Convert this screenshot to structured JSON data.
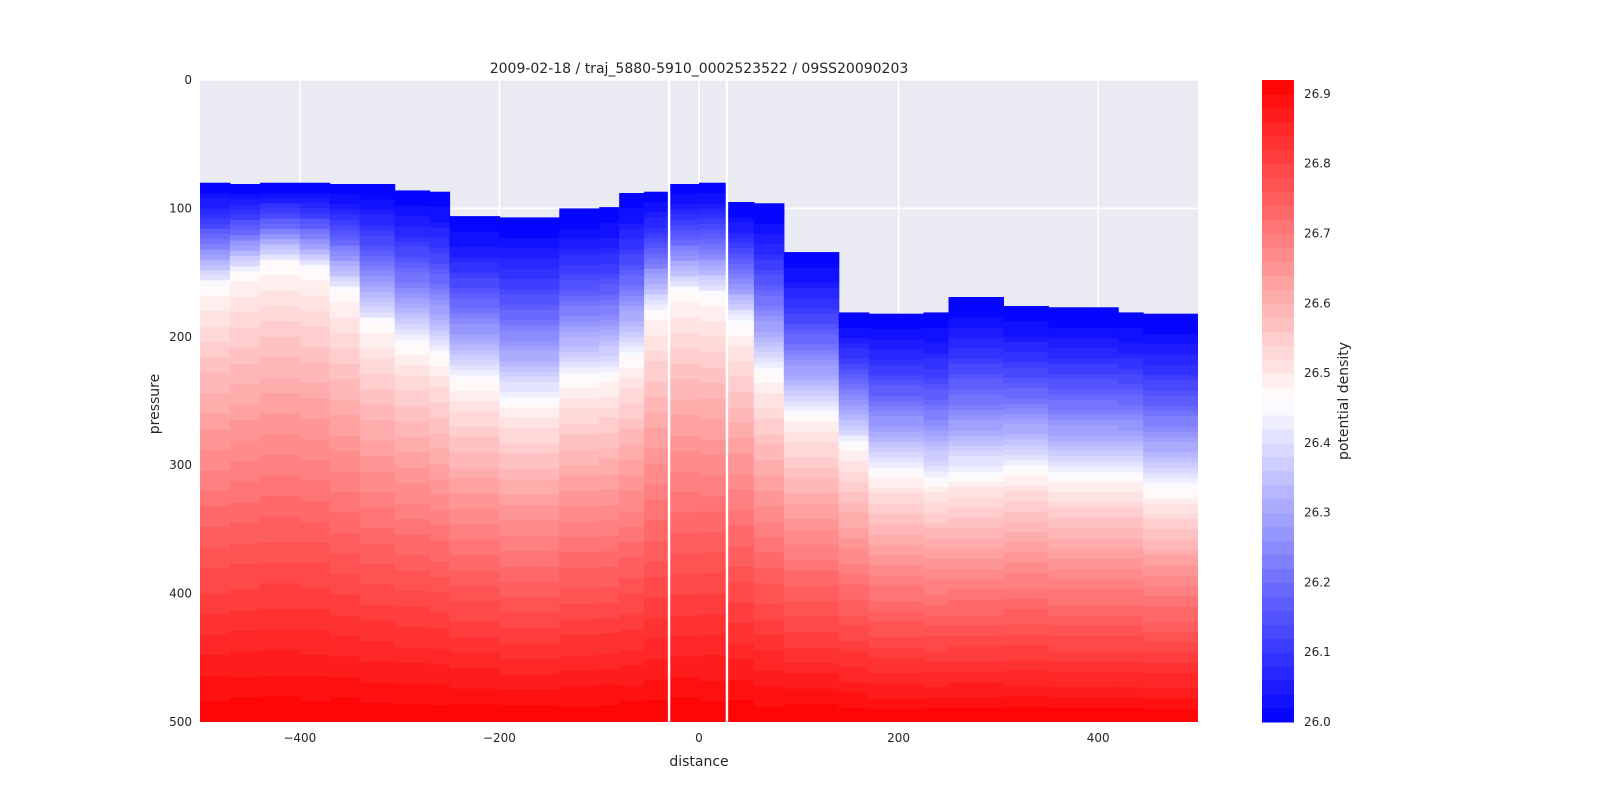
{
  "chart_data": {
    "type": "heatmap",
    "title": "2009-02-18 / traj_5880-5910_0002523522 / 09SS20090203",
    "xlabel": "distance",
    "ylabel": "pressure",
    "xlim": [
      -500,
      500
    ],
    "ylim": [
      500,
      0
    ],
    "y_inverted": true,
    "x_ticks": [
      -400,
      -200,
      0,
      200,
      400
    ],
    "x_tick_labels": [
      "−400",
      "−200",
      "0",
      "200",
      "400"
    ],
    "y_ticks": [
      0,
      100,
      200,
      300,
      400,
      500
    ],
    "grid": true,
    "colorbar": {
      "label": "potential density",
      "range": [
        26.0,
        26.92
      ],
      "ticks": [
        26.0,
        26.1,
        26.2,
        26.3,
        26.4,
        26.5,
        26.6,
        26.7,
        26.8,
        26.9
      ],
      "low_color": "#0000ff",
      "mid_color": "#ffffff",
      "high_color": "#ff0000",
      "levels": 46
    },
    "section_gaps": [
      -30,
      28
    ],
    "columns": [
      {
        "x0": -500,
        "x1": -470,
        "top": 80,
        "iso": 160
      },
      {
        "x0": -470,
        "x1": -440,
        "top": 81,
        "iso": 150
      },
      {
        "x0": -440,
        "x1": -400,
        "top": 80,
        "iso": 142
      },
      {
        "x0": -400,
        "x1": -370,
        "top": 80,
        "iso": 148
      },
      {
        "x0": -370,
        "x1": -340,
        "top": 81,
        "iso": 165
      },
      {
        "x0": -340,
        "x1": -305,
        "top": 81,
        "iso": 190
      },
      {
        "x0": -305,
        "x1": -270,
        "top": 86,
        "iso": 205
      },
      {
        "x0": -270,
        "x1": -250,
        "top": 87,
        "iso": 215
      },
      {
        "x0": -250,
        "x1": -200,
        "top": 106,
        "iso": 235
      },
      {
        "x0": -200,
        "x1": -140,
        "top": 107,
        "iso": 250
      },
      {
        "x0": -140,
        "x1": -100,
        "top": 100,
        "iso": 232
      },
      {
        "x0": -100,
        "x1": -80,
        "top": 99,
        "iso": 230
      },
      {
        "x0": -80,
        "x1": -55,
        "top": 88,
        "iso": 215
      },
      {
        "x0": -55,
        "x1": -30,
        "top": 87,
        "iso": 180
      },
      {
        "x0": -30,
        "x1": 0,
        "top": 81,
        "iso": 165
      },
      {
        "x0": 0,
        "x1": 28,
        "top": 80,
        "iso": 168
      },
      {
        "x0": 28,
        "x1": 55,
        "top": 95,
        "iso": 190
      },
      {
        "x0": 55,
        "x1": 85,
        "top": 96,
        "iso": 230
      },
      {
        "x0": 85,
        "x1": 140,
        "top": 134,
        "iso": 262
      },
      {
        "x0": 140,
        "x1": 170,
        "top": 181,
        "iso": 285
      },
      {
        "x0": 170,
        "x1": 225,
        "top": 182,
        "iso": 305
      },
      {
        "x0": 225,
        "x1": 250,
        "top": 181,
        "iso": 312
      },
      {
        "x0": 250,
        "x1": 305,
        "top": 169,
        "iso": 308
      },
      {
        "x0": 305,
        "x1": 350,
        "top": 176,
        "iso": 303
      },
      {
        "x0": 350,
        "x1": 420,
        "top": 177,
        "iso": 310
      },
      {
        "x0": 420,
        "x1": 445,
        "top": 181,
        "iso": 310
      },
      {
        "x0": 445,
        "x1": 500,
        "top": 182,
        "iso": 320
      }
    ]
  }
}
